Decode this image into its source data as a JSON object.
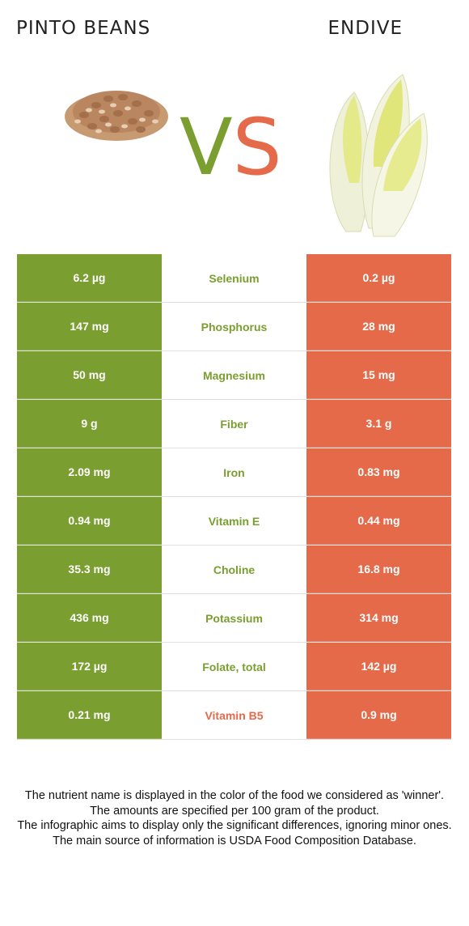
{
  "header": {
    "left_title": "PINTO BEANS",
    "right_title": "ENDIVE",
    "vs_v": "V",
    "vs_s": "S"
  },
  "colors": {
    "winner_left": "#7a9e2f",
    "winner_right": "#e46a4a"
  },
  "rows": [
    {
      "left": "6.2 µg",
      "nutrient": "Selenium",
      "right": "0.2 µg",
      "winner": "left"
    },
    {
      "left": "147 mg",
      "nutrient": "Phosphorus",
      "right": "28 mg",
      "winner": "left"
    },
    {
      "left": "50 mg",
      "nutrient": "Magnesium",
      "right": "15 mg",
      "winner": "left"
    },
    {
      "left": "9 g",
      "nutrient": "Fiber",
      "right": "3.1 g",
      "winner": "left"
    },
    {
      "left": "2.09 mg",
      "nutrient": "Iron",
      "right": "0.83 mg",
      "winner": "left"
    },
    {
      "left": "0.94 mg",
      "nutrient": "Vitamin E",
      "right": "0.44 mg",
      "winner": "left"
    },
    {
      "left": "35.3 mg",
      "nutrient": "Choline",
      "right": "16.8 mg",
      "winner": "left"
    },
    {
      "left": "436 mg",
      "nutrient": "Potassium",
      "right": "314 mg",
      "winner": "left"
    },
    {
      "left": "172 µg",
      "nutrient": "Folate, total",
      "right": "142 µg",
      "winner": "left"
    },
    {
      "left": "0.21 mg",
      "nutrient": "Vitamin B5",
      "right": "0.9 mg",
      "winner": "right"
    }
  ],
  "footer": {
    "line1": "The nutrient name is displayed in the color of the food we considered as 'winner'.",
    "line2": "The amounts are specified per 100 gram of the product.",
    "line3": "The infographic aims to display only the significant differences, ignoring minor ones.",
    "line4": "The main source of information is USDA Food Composition Database."
  }
}
